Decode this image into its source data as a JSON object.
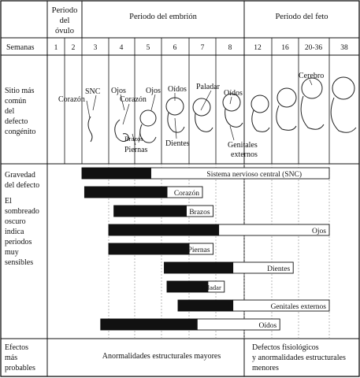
{
  "periods": {
    "ovulo": [
      "Periodo",
      "del",
      "óvulo"
    ],
    "embrion": "Periodo del embrión",
    "feto": "Periodo del feto"
  },
  "semanas_label": "Semanas",
  "weeks": [
    "1",
    "2",
    "3",
    "4",
    "5",
    "6",
    "7",
    "8",
    "12",
    "16",
    "20-36",
    "38"
  ],
  "sitio_label": [
    "Sitio más",
    "común",
    "del",
    "defecto",
    "congénito"
  ],
  "sites": [
    "Corazón",
    "SNC",
    "Ojos",
    "Corazón",
    "Ojos",
    "Brazos",
    "Piernas",
    "Oídos",
    "Dientes",
    "Paladar",
    "Oídos",
    "Genitales",
    "externos",
    "Cerebro"
  ],
  "gravedad_label": [
    "Gravedad",
    "del defecto"
  ],
  "sombreado_label": [
    "El",
    "sombreado",
    "oscuro",
    "indica",
    "periodos",
    "muy",
    "sensibles"
  ],
  "efectos_label": [
    "Efectos",
    "más",
    "probables"
  ],
  "efectos_embrion": "Anormalidades estructurales mayores",
  "efectos_feto": [
    "Defectos fisiológicos",
    "y anormalidades estructurales",
    "menores"
  ],
  "chart_data": {
    "type": "gantt",
    "week_columns": [
      "3",
      "4",
      "5",
      "6",
      "7",
      "8",
      "12",
      "16",
      "20-36",
      "38"
    ],
    "bars": [
      {
        "name": "Sistema nervioso central (SNC)",
        "dark": [
          3.0,
          5.6
        ],
        "light": [
          5.6,
          12.0
        ]
      },
      {
        "name": "Corazón",
        "dark": [
          3.1,
          6.2
        ],
        "light": [
          6.2,
          7.5
        ]
      },
      {
        "name": "Brazos",
        "dark": [
          4.2,
          6.9
        ],
        "light": [
          6.9,
          7.9
        ]
      },
      {
        "name": "Ojos",
        "dark": [
          4.0,
          8.1
        ],
        "light": [
          8.1,
          12.0
        ]
      },
      {
        "name": "Piernas",
        "dark": [
          4.0,
          7.0
        ],
        "light": [
          7.0,
          7.9
        ]
      },
      {
        "name": "Dientes",
        "dark": [
          6.1,
          8.6
        ],
        "light": [
          8.6,
          10.8
        ]
      },
      {
        "name": "Paladar",
        "dark": [
          6.2,
          7.7
        ],
        "light": [
          7.7,
          8.3
        ]
      },
      {
        "name": "Genitales externos",
        "dark": [
          6.6,
          8.6
        ],
        "light": [
          8.6,
          12.0
        ]
      },
      {
        "name": "Oídos",
        "dark": [
          3.7,
          7.3
        ],
        "light": [
          7.3,
          10.3
        ]
      }
    ],
    "colors": {
      "dark": "#111111",
      "light": "#ffffff",
      "grid": "#888888"
    }
  }
}
